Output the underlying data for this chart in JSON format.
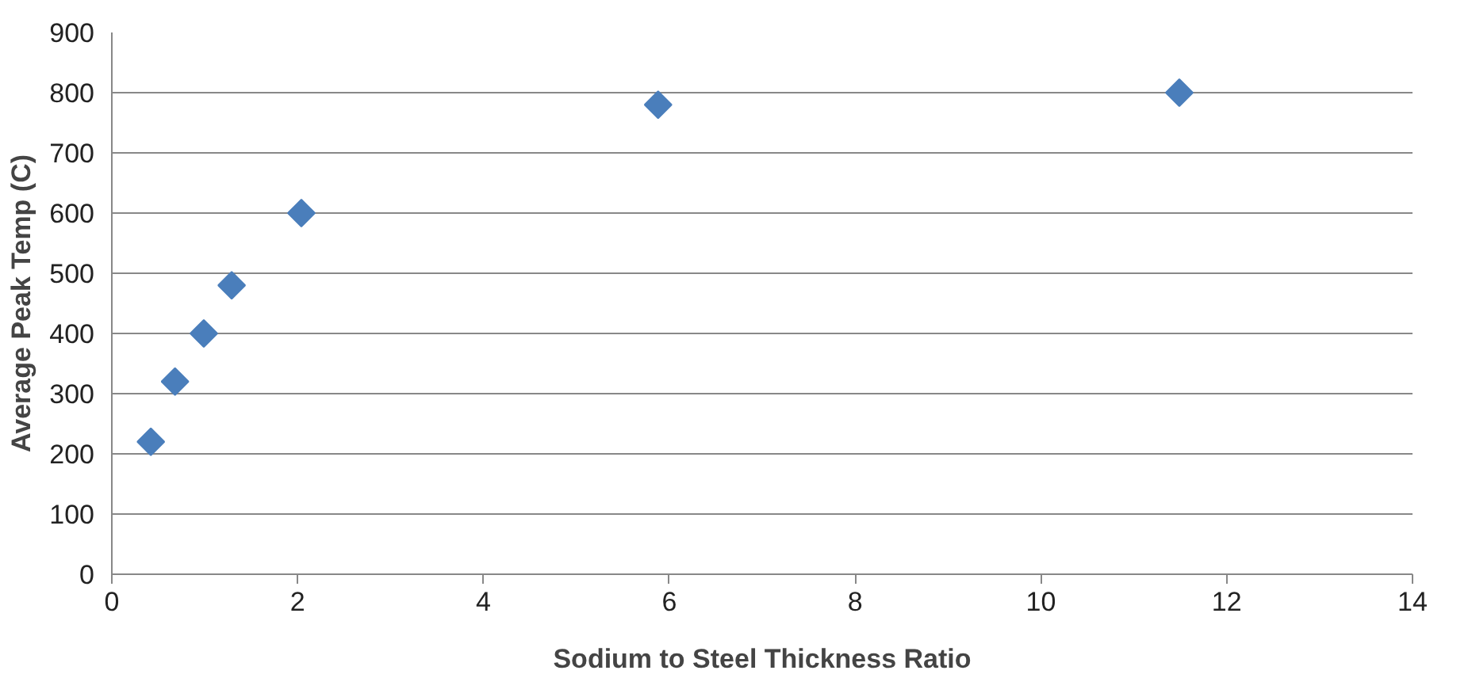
{
  "chart_data": {
    "type": "scatter",
    "xlabel": "Sodium to Steel Thickness Ratio",
    "ylabel": "Average Peak Temp (C)",
    "x": [
      0.42,
      0.68,
      0.99,
      1.29,
      2.04,
      5.88,
      11.49
    ],
    "values": [
      220,
      320,
      400,
      480,
      600,
      780,
      800
    ],
    "color": "#4a7ebb",
    "marker": "diamond",
    "xlim": [
      0,
      14
    ],
    "xticks": [
      0,
      2,
      4,
      6,
      8,
      10,
      12,
      14
    ],
    "ylim": [
      0,
      900
    ],
    "yticks": [
      0,
      100,
      200,
      300,
      400,
      500,
      600,
      700,
      800,
      900
    ],
    "grid": "y"
  }
}
